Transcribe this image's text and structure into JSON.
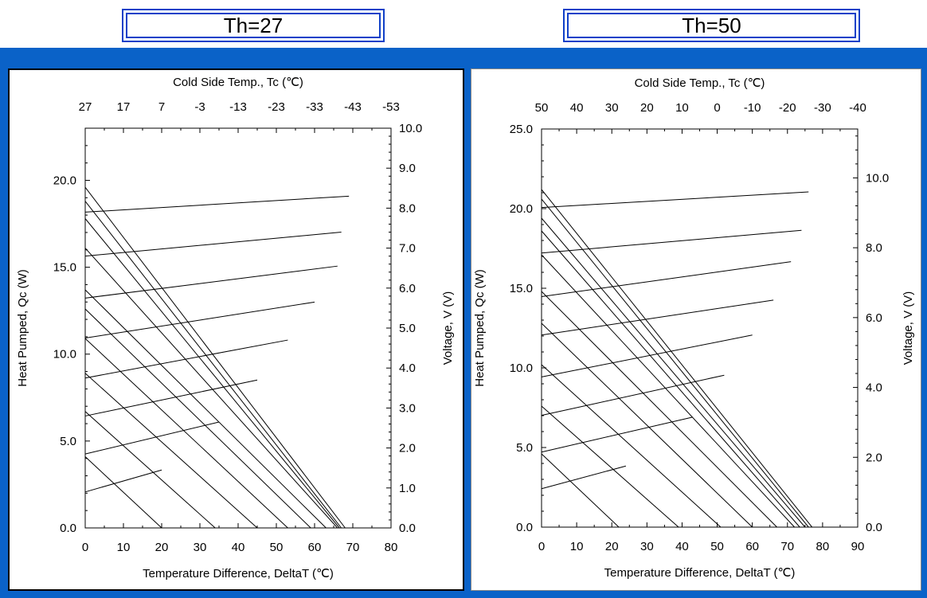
{
  "tabs": [
    {
      "label": "Th=27"
    },
    {
      "label": "Th=50"
    }
  ],
  "chart_data": [
    {
      "type": "line",
      "tab_label": "Th=27",
      "title": "",
      "xlabel": "Temperature Difference, DeltaT (℃)",
      "ylabel": "Heat Pumped, Qc (W)",
      "y2label": "Voltage, V (V)",
      "x2label": "Cold Side Temp., Tc (℃)",
      "xlim": [
        0,
        80
      ],
      "ylim": [
        0,
        23
      ],
      "y2lim": [
        0,
        10
      ],
      "x_ticks": [
        0,
        10,
        20,
        30,
        40,
        50,
        60,
        70,
        80
      ],
      "y_ticks": [
        0.0,
        5.0,
        10.0,
        15.0,
        20.0
      ],
      "y_tick_labels": [
        "0.0",
        "5.0",
        "10.0",
        "15.0",
        "20.0"
      ],
      "y2_ticks": [
        0,
        1,
        2,
        3,
        4,
        5,
        6,
        7,
        8,
        9,
        10
      ],
      "y2_tick_labels": [
        "0.0",
        "1.0",
        "2.0",
        "3.0",
        "4.0",
        "5.0",
        "6.0",
        "7.0",
        "8.0",
        "9.0",
        "10.0"
      ],
      "x2_ticks": [
        0,
        10,
        20,
        30,
        40,
        50,
        60,
        70,
        80
      ],
      "x2_tick_labels": [
        "27",
        "17",
        "7",
        "-3",
        "-13",
        "-23",
        "-33",
        "-43",
        "-53"
      ],
      "grid": false,
      "qc_series": [
        {
          "x": [
            0,
            20
          ],
          "y": [
            4.1,
            0
          ]
        },
        {
          "x": [
            0,
            34
          ],
          "y": [
            6.7,
            0
          ]
        },
        {
          "x": [
            0,
            45
          ],
          "y": [
            8.9,
            0
          ]
        },
        {
          "x": [
            0,
            53
          ],
          "y": [
            10.9,
            0
          ]
        },
        {
          "x": [
            0,
            59
          ],
          "y": [
            12.6,
            0
          ]
        },
        {
          "x": [
            0,
            63
          ],
          "y": [
            13.7,
            0
          ]
        },
        {
          "x": [
            0,
            66
          ],
          "y": [
            16.1,
            0
          ]
        },
        {
          "x": [
            0,
            66.5
          ],
          "y": [
            17.8,
            0
          ]
        },
        {
          "x": [
            0,
            67
          ],
          "y": [
            18.8,
            0
          ]
        },
        {
          "x": [
            0,
            68
          ],
          "y": [
            19.6,
            0
          ]
        }
      ],
      "voltage_series": [
        {
          "x": [
            0,
            20
          ],
          "v": [
            0.9,
            1.45
          ]
        },
        {
          "x": [
            0,
            35
          ],
          "v": [
            1.85,
            2.65
          ]
        },
        {
          "x": [
            0,
            45
          ],
          "v": [
            2.8,
            3.7
          ]
        },
        {
          "x": [
            0,
            53
          ],
          "v": [
            3.75,
            4.7
          ]
        },
        {
          "x": [
            0,
            60
          ],
          "v": [
            4.75,
            5.65
          ]
        },
        {
          "x": [
            0,
            66
          ],
          "v": [
            5.75,
            6.55
          ]
        },
        {
          "x": [
            0,
            67
          ],
          "v": [
            6.8,
            7.4
          ]
        },
        {
          "x": [
            0,
            69
          ],
          "v": [
            7.9,
            8.3
          ]
        }
      ]
    },
    {
      "type": "line",
      "tab_label": "Th=50",
      "title": "",
      "xlabel": "Temperature Difference, DeltaT (℃)",
      "ylabel": "Heat Pumped, Qc (W)",
      "y2label": "Voltage, V (V)",
      "x2label": "Cold Side Temp., Tc (℃)",
      "xlim": [
        0,
        90
      ],
      "ylim": [
        0,
        25
      ],
      "y2lim": [
        0,
        11.4
      ],
      "x_ticks": [
        0,
        10,
        20,
        30,
        40,
        50,
        60,
        70,
        80,
        90
      ],
      "y_ticks": [
        0.0,
        5.0,
        10.0,
        15.0,
        20.0,
        25.0
      ],
      "y_tick_labels": [
        "0.0",
        "5.0",
        "10.0",
        "15.0",
        "20.0",
        "25.0"
      ],
      "y2_ticks": [
        0,
        2,
        4,
        6,
        8,
        10
      ],
      "y2_tick_labels": [
        "0.0",
        "2.0",
        "4.0",
        "6.0",
        "8.0",
        "10.0"
      ],
      "x2_ticks": [
        0,
        10,
        20,
        30,
        40,
        50,
        60,
        70,
        80,
        90
      ],
      "x2_tick_labels": [
        "50",
        "40",
        "30",
        "20",
        "10",
        "0",
        "-10",
        "-20",
        "-30",
        "-40"
      ],
      "grid": false,
      "qc_series": [
        {
          "x": [
            0,
            22
          ],
          "y": [
            4.6,
            0
          ]
        },
        {
          "x": [
            0,
            39
          ],
          "y": [
            7.6,
            0
          ]
        },
        {
          "x": [
            0,
            51
          ],
          "y": [
            10.2,
            0
          ]
        },
        {
          "x": [
            0,
            60
          ],
          "y": [
            12.8,
            0
          ]
        },
        {
          "x": [
            0,
            67
          ],
          "y": [
            14.8,
            0
          ]
        },
        {
          "x": [
            0,
            72
          ],
          "y": [
            17.1,
            0
          ]
        },
        {
          "x": [
            0,
            73.5
          ],
          "y": [
            18.6,
            0
          ]
        },
        {
          "x": [
            0,
            75
          ],
          "y": [
            19.4,
            0
          ]
        },
        {
          "x": [
            0,
            76
          ],
          "y": [
            20.6,
            0
          ]
        },
        {
          "x": [
            0,
            77
          ],
          "y": [
            21.2,
            0
          ]
        }
      ],
      "voltage_series": [
        {
          "x": [
            0,
            24
          ],
          "v": [
            1.1,
            1.75
          ]
        },
        {
          "x": [
            0,
            43
          ],
          "v": [
            2.15,
            3.15
          ]
        },
        {
          "x": [
            0,
            52
          ],
          "v": [
            3.2,
            4.35
          ]
        },
        {
          "x": [
            0,
            60
          ],
          "v": [
            4.3,
            5.5
          ]
        },
        {
          "x": [
            0,
            66
          ],
          "v": [
            5.5,
            6.5
          ]
        },
        {
          "x": [
            0,
            71
          ],
          "v": [
            6.6,
            7.6
          ]
        },
        {
          "x": [
            0,
            74
          ],
          "v": [
            7.85,
            8.5
          ]
        },
        {
          "x": [
            0,
            76
          ],
          "v": [
            9.15,
            9.6
          ]
        }
      ]
    }
  ]
}
